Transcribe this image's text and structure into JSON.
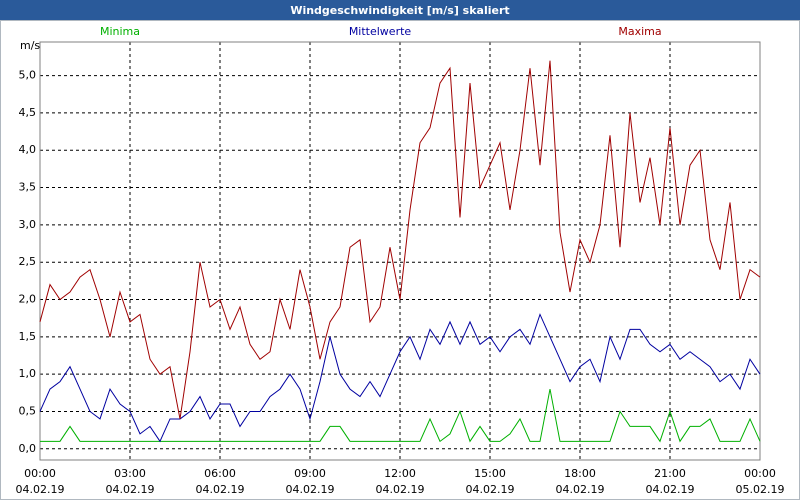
{
  "chart_data": {
    "type": "line",
    "title": "Windgeschwindigkeit [m/s] skaliert",
    "y_label": "m/s",
    "legend": "top",
    "grid": true,
    "x": [
      0,
      20,
      40,
      60,
      80,
      100,
      120,
      140,
      160,
      180,
      200,
      220,
      240,
      260,
      280,
      300,
      320,
      340,
      360,
      380,
      400,
      420,
      440,
      460,
      480,
      500,
      520,
      540,
      560,
      580,
      600,
      620,
      640,
      660,
      680,
      700,
      720,
      740,
      760,
      780,
      800,
      820,
      840,
      860,
      880,
      900,
      920,
      940,
      960,
      980,
      1000,
      1020,
      1040,
      1060,
      1080,
      1100,
      1120,
      1140,
      1160,
      1180,
      1200,
      1220,
      1240,
      1260,
      1280,
      1300,
      1320,
      1340,
      1360,
      1380,
      1400,
      1420,
      1440
    ],
    "xlim": [
      0,
      1440
    ],
    "xticks": [
      {
        "value": 0,
        "label": "00:00\n04.02.19"
      },
      {
        "value": 180,
        "label": "03:00\n04.02.19"
      },
      {
        "value": 360,
        "label": "06:00\n04.02.19"
      },
      {
        "value": 540,
        "label": "09:00\n04.02.19"
      },
      {
        "value": 720,
        "label": "12:00\n04.02.19"
      },
      {
        "value": 900,
        "label": "15:00\n04.02.19"
      },
      {
        "value": 1080,
        "label": "18:00\n04.02.19"
      },
      {
        "value": 1260,
        "label": "21:00\n04.02.19"
      },
      {
        "value": 1440,
        "label": "00:00\n05.02.19"
      }
    ],
    "ylim": [
      -0.15,
      5.45
    ],
    "yticks": [
      {
        "value": 0,
        "label": "0,0"
      },
      {
        "value": 0.5,
        "label": "0,5"
      },
      {
        "value": 1,
        "label": "1,0"
      },
      {
        "value": 1.5,
        "label": "1,5"
      },
      {
        "value": 2,
        "label": "2,0"
      },
      {
        "value": 2.5,
        "label": "2,5"
      },
      {
        "value": 3,
        "label": "3,0"
      },
      {
        "value": 3.5,
        "label": "3,5"
      },
      {
        "value": 4,
        "label": "4,0"
      },
      {
        "value": 4.5,
        "label": "4,5"
      },
      {
        "value": 5,
        "label": "5,0"
      }
    ],
    "series": [
      {
        "name": "Minima",
        "color": "#00b000",
        "values": [
          0.1,
          0.1,
          0.1,
          0.3,
          0.1,
          0.1,
          0.1,
          0.1,
          0.1,
          0.1,
          0.1,
          0.1,
          0.1,
          0.1,
          0.1,
          0.1,
          0.1,
          0.1,
          0.1,
          0.1,
          0.1,
          0.1,
          0.1,
          0.1,
          0.1,
          0.1,
          0.1,
          0.1,
          0.1,
          0.3,
          0.3,
          0.1,
          0.1,
          0.1,
          0.1,
          0.1,
          0.1,
          0.1,
          0.1,
          0.4,
          0.1,
          0.2,
          0.5,
          0.1,
          0.3,
          0.1,
          0.1,
          0.2,
          0.4,
          0.1,
          0.1,
          0.8,
          0.1,
          0.1,
          0.1,
          0.1,
          0.1,
          0.1,
          0.5,
          0.3,
          0.3,
          0.3,
          0.1,
          0.5,
          0.1,
          0.3,
          0.3,
          0.4,
          0.1,
          0.1,
          0.1,
          0.4,
          0.1
        ]
      },
      {
        "name": "Mittelwerte",
        "color": "#0000a0",
        "values": [
          0.5,
          0.8,
          0.9,
          1.1,
          0.8,
          0.5,
          0.4,
          0.8,
          0.6,
          0.5,
          0.2,
          0.3,
          0.1,
          0.4,
          0.4,
          0.5,
          0.7,
          0.4,
          0.6,
          0.6,
          0.3,
          0.5,
          0.5,
          0.7,
          0.8,
          1.0,
          0.8,
          0.4,
          0.9,
          1.5,
          1.0,
          0.8,
          0.7,
          0.9,
          0.7,
          1.0,
          1.3,
          1.5,
          1.2,
          1.6,
          1.4,
          1.7,
          1.4,
          1.7,
          1.4,
          1.5,
          1.3,
          1.5,
          1.6,
          1.4,
          1.8,
          1.5,
          1.2,
          0.9,
          1.1,
          1.2,
          0.9,
          1.5,
          1.2,
          1.6,
          1.6,
          1.4,
          1.3,
          1.4,
          1.2,
          1.3,
          1.2,
          1.1,
          0.9,
          1.0,
          0.8,
          1.2,
          1.0
        ]
      },
      {
        "name": "Maxima",
        "color": "#a00000",
        "values": [
          1.7,
          2.2,
          2.0,
          2.1,
          2.3,
          2.4,
          2.0,
          1.5,
          2.1,
          1.7,
          1.8,
          1.2,
          1.0,
          1.1,
          0.4,
          1.3,
          2.5,
          1.9,
          2.0,
          1.6,
          1.9,
          1.4,
          1.2,
          1.3,
          2.0,
          1.6,
          2.4,
          1.9,
          1.2,
          1.7,
          1.9,
          2.7,
          2.8,
          1.7,
          1.9,
          2.7,
          2.0,
          3.2,
          4.1,
          4.3,
          4.9,
          5.1,
          3.1,
          4.9,
          3.5,
          3.8,
          4.1,
          3.2,
          4.0,
          5.1,
          3.8,
          5.2,
          2.9,
          2.1,
          2.8,
          2.5,
          3.0,
          4.2,
          2.7,
          4.5,
          3.3,
          3.9,
          3.0,
          4.3,
          3.0,
          3.8,
          4.0,
          2.8,
          2.4,
          3.3,
          2.0,
          2.4,
          2.3
        ]
      }
    ]
  }
}
